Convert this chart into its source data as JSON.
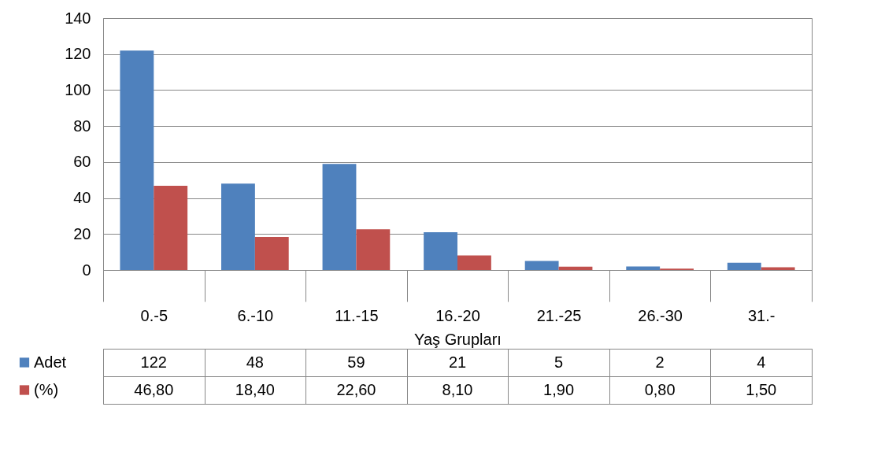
{
  "chart_data": {
    "type": "bar",
    "xlabel": "Yaş Grupları",
    "categories": [
      "0.-5",
      "6.-10",
      "11.-15",
      "16.-20",
      "21.-25",
      "26.-30",
      "31.-"
    ],
    "series": [
      {
        "name": "Adet",
        "color": "#4f81bd",
        "values": [
          122,
          48,
          59,
          21,
          5,
          2,
          4
        ],
        "value_labels": [
          "122",
          "48",
          "59",
          "21",
          "5",
          "2",
          "4"
        ]
      },
      {
        "name": "(%)",
        "color": "#c0504d",
        "values": [
          46.8,
          18.4,
          22.6,
          8.1,
          1.9,
          0.8,
          1.5
        ],
        "value_labels": [
          "46,80",
          "18,40",
          "22,60",
          "8,10",
          "1,90",
          "0,80",
          "1,50"
        ]
      }
    ],
    "ylim": [
      0,
      140
    ],
    "yticks": [
      0,
      20,
      40,
      60,
      80,
      100,
      120,
      140
    ],
    "grid": "y",
    "legend": "bottom"
  }
}
